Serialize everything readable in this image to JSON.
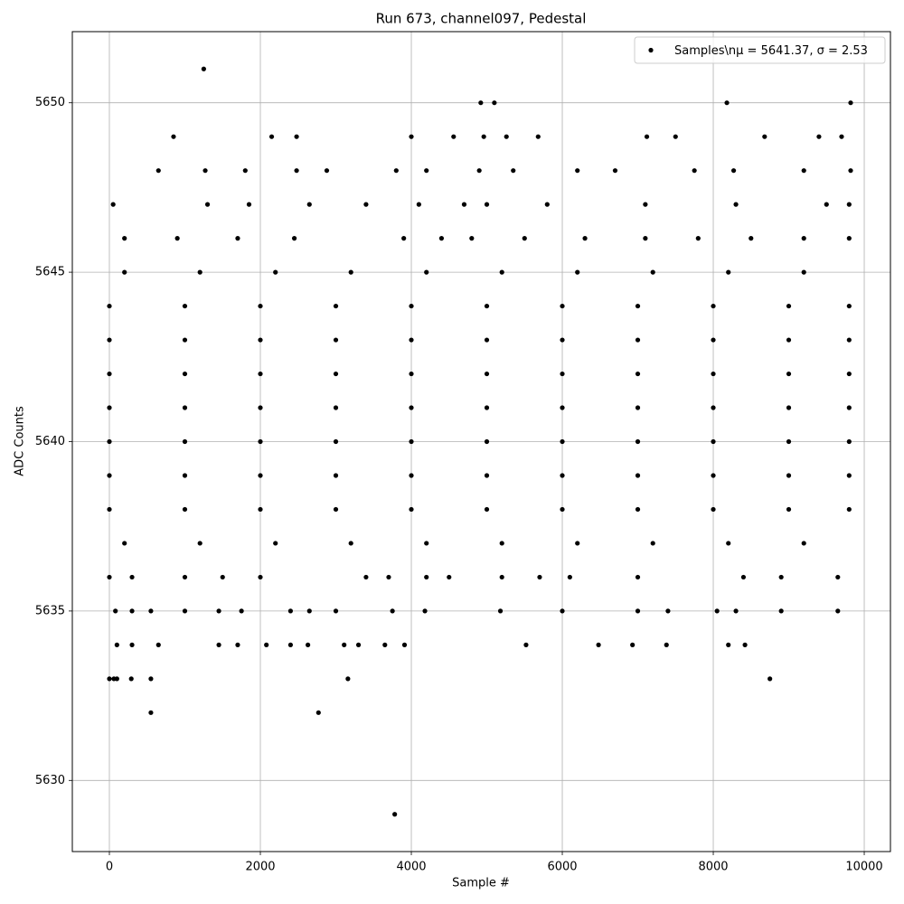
{
  "chart_data": {
    "type": "scatter",
    "title": "Run 673, channel097, Pedestal",
    "x_label": "Sample #",
    "y_label": "ADC Counts",
    "xlim": [
      -491,
      10347
    ],
    "ylim": [
      5627.9,
      5652.1
    ],
    "xticks": [
      0,
      2000,
      4000,
      6000,
      8000,
      10000
    ],
    "yticks": [
      5630,
      5635,
      5640,
      5645,
      5650
    ],
    "grid": true,
    "legend": "upper right",
    "series": [
      {
        "name": "Samples\\nμ = 5641.37, σ = 2.53",
        "color": "#000000",
        "x": [
          0,
          1000,
          2000,
          3000,
          4000,
          5000,
          6000,
          7000,
          8000,
          9000,
          9800,
          0,
          1000,
          2000,
          3000,
          4000,
          5000,
          6000,
          7000,
          8000,
          9000,
          9800,
          0,
          1000,
          2000,
          3000,
          4000,
          5000,
          6000,
          7000,
          8000,
          9000,
          9800,
          0,
          1000,
          2000,
          3000,
          4000,
          5000,
          6000,
          7000,
          8000,
          9000,
          9800,
          0,
          1000,
          2000,
          3000,
          4000,
          5000,
          6000,
          7000,
          8000,
          9000,
          9800,
          0,
          1000,
          2000,
          3000,
          4000,
          5000,
          6000,
          7000,
          8000,
          9000,
          9800,
          0,
          1000,
          2000,
          3000,
          4000,
          5000,
          6000,
          7000,
          8000,
          9000,
          9800,
          200,
          1200,
          2200,
          3200,
          4200,
          5200,
          6200,
          7200,
          8200,
          9200,
          200,
          1200,
          2200,
          3200,
          4200,
          5200,
          6200,
          7200,
          8200,
          9200,
          200,
          900,
          1700,
          2450,
          3900,
          4400,
          4800,
          5500,
          6300,
          7100,
          7800,
          8500,
          9200,
          9800,
          50,
          1300,
          1850,
          2650,
          3400,
          4100,
          4700,
          5000,
          5800,
          7100,
          8300,
          9500,
          9800,
          650,
          1270,
          1800,
          2480,
          2880,
          3800,
          4200,
          4900,
          5350,
          6200,
          6700,
          7750,
          8270,
          9200,
          9820,
          850,
          2150,
          2480,
          4000,
          4560,
          4960,
          5260,
          5680,
          7120,
          7500,
          8680,
          9400,
          9700,
          0,
          300,
          1000,
          1500,
          2000,
          3400,
          3700,
          4200,
          4500,
          5200,
          5700,
          6100,
          7000,
          8400,
          8900,
          9650,
          80,
          300,
          550,
          1000,
          1450,
          1750,
          2400,
          2650,
          3000,
          3750,
          4180,
          5180,
          6000,
          7000,
          7400,
          8050,
          8300,
          8900,
          9650,
          100,
          300,
          650,
          1450,
          1700,
          2080,
          2400,
          2630,
          3110,
          3300,
          3650,
          3910,
          5520,
          6480,
          6930,
          7380,
          8200,
          8420,
          1250,
          4920,
          5100,
          8180,
          9820,
          3780,
          550,
          2770,
          0,
          60,
          100,
          290,
          550,
          3160,
          8750
        ],
        "values": [
          5644,
          5644,
          5644,
          5644,
          5644,
          5644,
          5644,
          5644,
          5644,
          5644,
          5644,
          5643,
          5643,
          5643,
          5643,
          5643,
          5643,
          5643,
          5643,
          5643,
          5643,
          5643,
          5642,
          5642,
          5642,
          5642,
          5642,
          5642,
          5642,
          5642,
          5642,
          5642,
          5642,
          5641,
          5641,
          5641,
          5641,
          5641,
          5641,
          5641,
          5641,
          5641,
          5641,
          5641,
          5640,
          5640,
          5640,
          5640,
          5640,
          5640,
          5640,
          5640,
          5640,
          5640,
          5640,
          5639,
          5639,
          5639,
          5639,
          5639,
          5639,
          5639,
          5639,
          5639,
          5639,
          5639,
          5638,
          5638,
          5638,
          5638,
          5638,
          5638,
          5638,
          5638,
          5638,
          5638,
          5638,
          5645,
          5645,
          5645,
          5645,
          5645,
          5645,
          5645,
          5645,
          5645,
          5645,
          5637,
          5637,
          5637,
          5637,
          5637,
          5637,
          5637,
          5637,
          5637,
          5637,
          5646,
          5646,
          5646,
          5646,
          5646,
          5646,
          5646,
          5646,
          5646,
          5646,
          5646,
          5646,
          5646,
          5646,
          5647,
          5647,
          5647,
          5647,
          5647,
          5647,
          5647,
          5647,
          5647,
          5647,
          5647,
          5647,
          5647,
          5648,
          5648,
          5648,
          5648,
          5648,
          5648,
          5648,
          5648,
          5648,
          5648,
          5648,
          5648,
          5648,
          5648,
          5648,
          5649,
          5649,
          5649,
          5649,
          5649,
          5649,
          5649,
          5649,
          5649,
          5649,
          5649,
          5649,
          5649,
          5636,
          5636,
          5636,
          5636,
          5636,
          5636,
          5636,
          5636,
          5636,
          5636,
          5636,
          5636,
          5636,
          5636,
          5636,
          5636,
          5635,
          5635,
          5635,
          5635,
          5635,
          5635,
          5635,
          5635,
          5635,
          5635,
          5635,
          5635,
          5635,
          5635,
          5635,
          5635,
          5635,
          5635,
          5635,
          5634,
          5634,
          5634,
          5634,
          5634,
          5634,
          5634,
          5634,
          5634,
          5634,
          5634,
          5634,
          5634,
          5634,
          5634,
          5634,
          5634,
          5634,
          5651,
          5650,
          5650,
          5650,
          5650,
          5629,
          5632,
          5632,
          5633,
          5633,
          5633,
          5633,
          5633,
          5633,
          5633
        ]
      }
    ]
  }
}
